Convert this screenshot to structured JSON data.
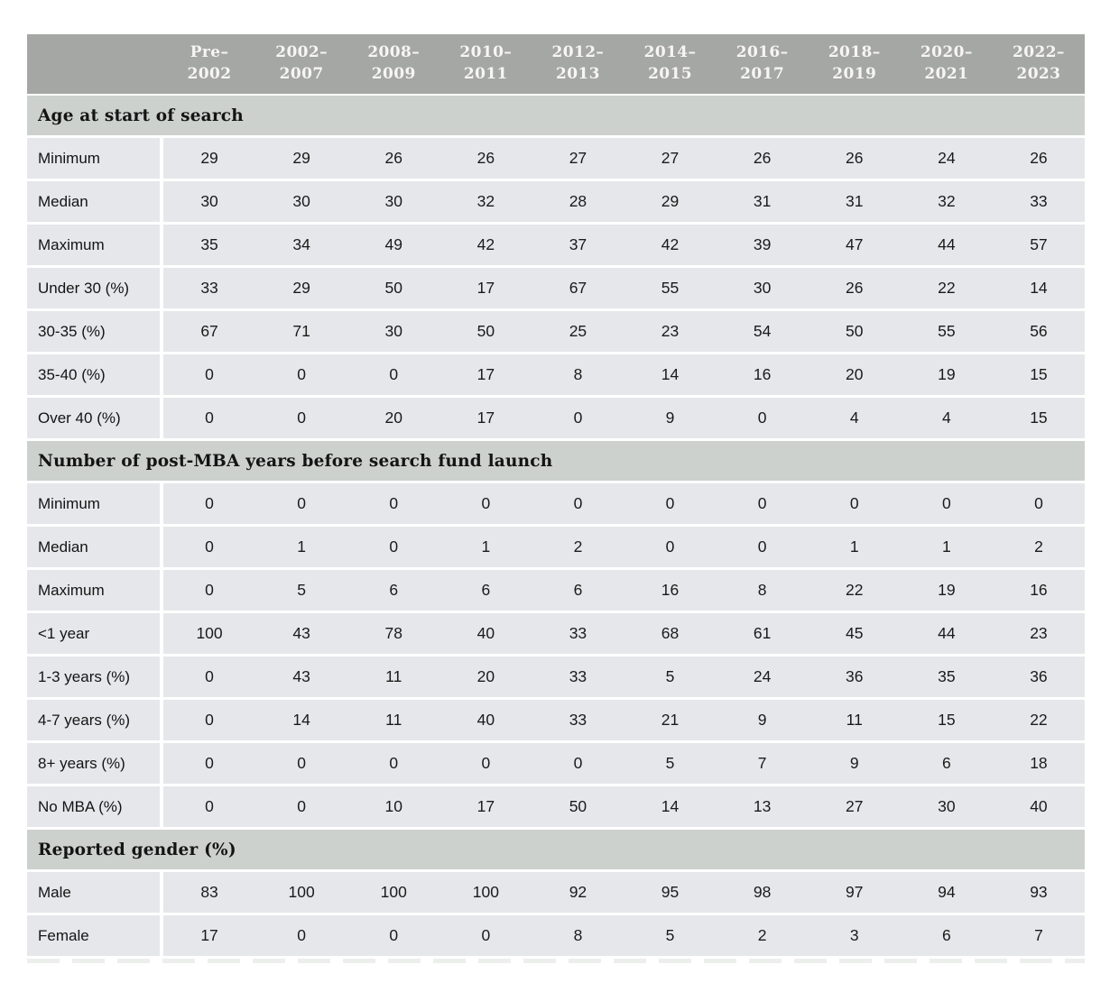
{
  "chart_data": {
    "type": "table",
    "title": "",
    "columns": [
      "Pre–\n2002",
      "2002–\n2007",
      "2008–\n2009",
      "2010–\n2011",
      "2012–\n2013",
      "2014–\n2015",
      "2016–\n2017",
      "2018–\n2019",
      "2020–\n2021",
      "2022–\n2023"
    ],
    "sections": [
      {
        "title": "Age at start of search",
        "rows": [
          {
            "label": "Minimum",
            "values": [
              29,
              29,
              26,
              26,
              27,
              27,
              26,
              26,
              24,
              26
            ]
          },
          {
            "label": "Median",
            "values": [
              30,
              30,
              30,
              32,
              28,
              29,
              31,
              31,
              32,
              33
            ]
          },
          {
            "label": "Maximum",
            "values": [
              35,
              34,
              49,
              42,
              37,
              42,
              39,
              47,
              44,
              57
            ]
          },
          {
            "label": "Under 30 (%)",
            "values": [
              33,
              29,
              50,
              17,
              67,
              55,
              30,
              26,
              22,
              14
            ]
          },
          {
            "label": "30-35 (%)",
            "values": [
              67,
              71,
              30,
              50,
              25,
              23,
              54,
              50,
              55,
              56
            ]
          },
          {
            "label": "35-40 (%)",
            "values": [
              0,
              0,
              0,
              17,
              8,
              14,
              16,
              20,
              19,
              15
            ]
          },
          {
            "label": "Over 40 (%)",
            "values": [
              0,
              0,
              20,
              17,
              0,
              9,
              0,
              4,
              4,
              15
            ]
          }
        ]
      },
      {
        "title": "Number of post-MBA years before search fund launch",
        "rows": [
          {
            "label": "Minimum",
            "values": [
              0,
              0,
              0,
              0,
              0,
              0,
              0,
              0,
              0,
              0
            ]
          },
          {
            "label": "Median",
            "values": [
              0,
              1,
              0,
              1,
              2,
              0,
              0,
              1,
              1,
              2
            ]
          },
          {
            "label": "Maximum",
            "values": [
              0,
              5,
              6,
              6,
              6,
              16,
              8,
              22,
              19,
              16
            ]
          },
          {
            "label": "<1 year",
            "values": [
              100,
              43,
              78,
              40,
              33,
              68,
              61,
              45,
              44,
              23
            ]
          },
          {
            "label": "1-3 years (%)",
            "values": [
              0,
              43,
              11,
              20,
              33,
              5,
              24,
              36,
              35,
              36
            ]
          },
          {
            "label": "4-7 years (%)",
            "values": [
              0,
              14,
              11,
              40,
              33,
              21,
              9,
              11,
              15,
              22
            ]
          },
          {
            "label": "8+ years (%)",
            "values": [
              0,
              0,
              0,
              0,
              0,
              5,
              7,
              9,
              6,
              18
            ]
          },
          {
            "label": "No MBA (%)",
            "values": [
              0,
              0,
              10,
              17,
              50,
              14,
              13,
              27,
              30,
              40
            ]
          }
        ]
      },
      {
        "title": "Reported gender (%)",
        "rows": [
          {
            "label": "Male",
            "values": [
              83,
              100,
              100,
              100,
              92,
              95,
              98,
              97,
              94,
              93
            ]
          },
          {
            "label": "Female",
            "values": [
              17,
              0,
              0,
              0,
              8,
              5,
              2,
              3,
              6,
              7
            ]
          }
        ]
      }
    ],
    "layout": {
      "header_bg": "#a5a7a4",
      "section_bg": "#ccd1ce",
      "row_bg": "#e5e7ea",
      "header_text_color": "#f7f6f2",
      "body_text_color": "#1a1a1a"
    }
  }
}
